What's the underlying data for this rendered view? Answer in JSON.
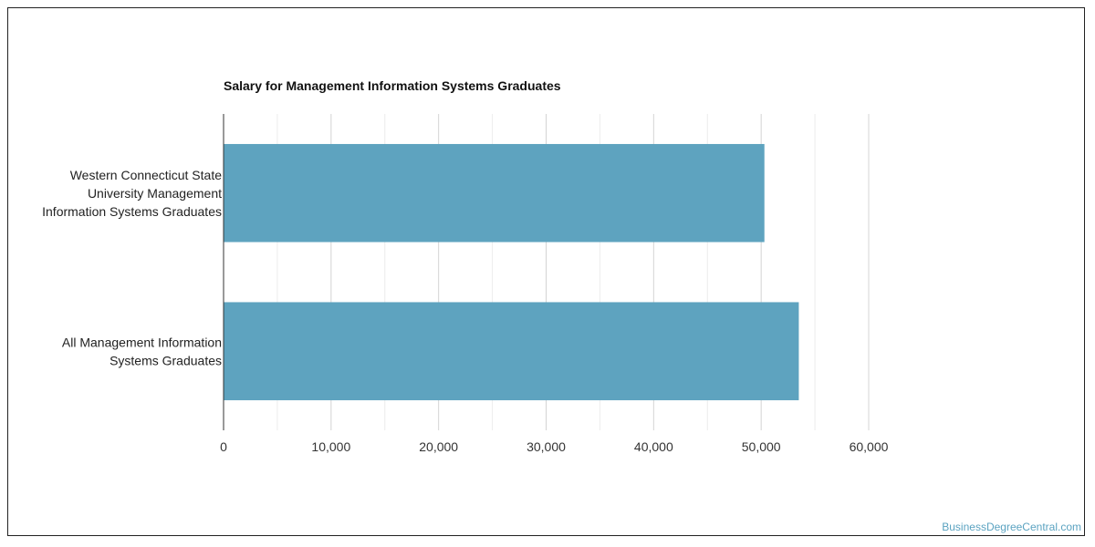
{
  "chart_data": {
    "type": "bar",
    "orientation": "horizontal",
    "title": "Salary for Management Information Systems Graduates",
    "categories": [
      [
        "Western Connecticut State",
        "University Management",
        "Information Systems Graduates"
      ],
      [
        "All Management Information",
        "Systems Graduates"
      ]
    ],
    "values": [
      50300,
      53500
    ],
    "xlim": [
      0,
      60000
    ],
    "xticks": [
      0,
      10000,
      20000,
      30000,
      40000,
      50000,
      60000
    ],
    "xtick_labels": [
      "0",
      "10,000",
      "20,000",
      "30,000",
      "40,000",
      "50,000",
      "60,000"
    ],
    "xlabel": "",
    "ylabel": "",
    "grid": true,
    "bar_color": "#5ea3bf",
    "grid_color": "#dddddd"
  },
  "credit": "BusinessDegreeCentral.com"
}
